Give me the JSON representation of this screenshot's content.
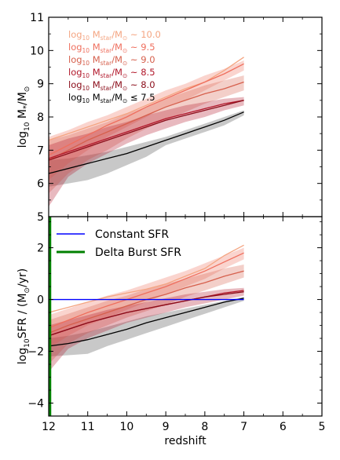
{
  "chart_data": [
    {
      "type": "line",
      "panel": "top",
      "ylabel_main": "log",
      "ylabel_sub": "10",
      "ylabel_tail": " M",
      "ylabel_star": "*",
      "ylabel_sep": "/M",
      "ylabel_sun": "⊙",
      "xlim": [
        12,
        5
      ],
      "ylim": [
        5,
        11
      ],
      "yticks": [
        5,
        6,
        7,
        8,
        9,
        10,
        11
      ],
      "grid": false,
      "legend_placement": "top-left",
      "x": [
        12,
        11.5,
        11,
        10.5,
        10,
        9.5,
        9,
        8.5,
        8,
        7.5,
        7
      ],
      "series": [
        {
          "name": "log10 Mstar/M⊙ ~ 10.0",
          "label_main": "log",
          "label_sub": "10",
          "label_m": " M",
          "label_ms": "star",
          "label_mid": "/M",
          "label_sun": "⊙",
          "label_rel": " ~ 10.0",
          "color": "#f4a582",
          "values": [
            7.3,
            7.5,
            7.7,
            7.9,
            8.1,
            8.35,
            8.6,
            8.85,
            9.05,
            9.4,
            9.8
          ],
          "band_lo": null,
          "band_hi": null
        },
        {
          "name": "log10 Mstar/M⊙ ~ 9.5",
          "label_main": "log",
          "label_sub": "10",
          "label_m": " M",
          "label_ms": "star",
          "label_mid": "/M",
          "label_sun": "⊙",
          "label_rel": " ~ 9.5",
          "color": "#ef6f5e",
          "values": [
            6.85,
            7.15,
            7.45,
            7.75,
            8.0,
            8.3,
            8.55,
            8.8,
            9.05,
            9.3,
            9.6
          ],
          "band_lo": [
            6.1,
            6.6,
            7.0,
            7.4,
            7.7,
            8.0,
            8.3,
            8.5,
            8.8,
            9.1,
            9.4
          ],
          "band_hi": [
            7.4,
            7.6,
            7.85,
            8.05,
            8.3,
            8.55,
            8.8,
            9.0,
            9.25,
            9.45,
            9.7
          ]
        },
        {
          "name": "log10 Mstar/M⊙ ~ 9.0",
          "label_main": "log",
          "label_sub": "10",
          "label_m": " M",
          "label_ms": "star",
          "label_mid": "/M",
          "label_sun": "⊙",
          "label_rel": " ~ 9.0",
          "color": "#d6604d",
          "values": [
            6.7,
            7.0,
            7.3,
            7.55,
            7.8,
            8.05,
            8.3,
            8.5,
            8.7,
            8.85,
            9.05
          ],
          "band_lo": [
            5.7,
            6.3,
            6.7,
            7.0,
            7.35,
            7.65,
            7.9,
            8.15,
            8.4,
            8.6,
            8.8
          ],
          "band_hi": [
            7.3,
            7.45,
            7.65,
            7.85,
            8.1,
            8.3,
            8.55,
            8.75,
            8.95,
            9.1,
            9.25
          ]
        },
        {
          "name": "log10 Mstar/M⊙ ~ 8.5",
          "label_main": "log",
          "label_sub": "10",
          "label_m": " M",
          "label_ms": "star",
          "label_mid": "/M",
          "label_sun": "⊙",
          "label_rel": " ~ 8.5",
          "color": "#b2182b",
          "values": [
            6.75,
            6.95,
            7.15,
            7.35,
            7.55,
            7.75,
            7.95,
            8.1,
            8.25,
            8.4,
            8.5
          ],
          "band_lo": [
            5.3,
            6.2,
            6.6,
            6.9,
            7.2,
            7.45,
            7.65,
            7.85,
            8.0,
            8.2,
            8.35
          ],
          "band_hi": [
            7.15,
            7.35,
            7.5,
            7.7,
            7.85,
            8.05,
            8.2,
            8.35,
            8.45,
            8.55,
            8.6
          ]
        },
        {
          "name": "log10 Mstar/M⊙ ~ 8.0",
          "label_main": "log",
          "label_sub": "10",
          "label_m": " M",
          "label_ms": "star",
          "label_mid": "/M",
          "label_sun": "⊙",
          "label_rel": " ~ 8.0",
          "color": "#8b0d1a",
          "values": [
            6.7,
            6.9,
            7.1,
            7.3,
            7.5,
            7.7,
            7.9,
            8.05,
            8.2,
            8.35,
            8.5
          ],
          "band_lo": null,
          "band_hi": null
        },
        {
          "name": "log10 Mstar/M⊙ ≤ 7.5",
          "label_main": "log",
          "label_sub": "10",
          "label_m": " M",
          "label_ms": "star",
          "label_mid": "/M",
          "label_sun": "⊙",
          "label_rel": " ≤ 7.5",
          "color": "#000000",
          "values": [
            6.3,
            6.45,
            6.6,
            6.75,
            6.9,
            7.1,
            7.3,
            7.5,
            7.7,
            7.9,
            8.15
          ],
          "band_lo": [
            5.9,
            6.0,
            6.1,
            6.3,
            6.55,
            6.8,
            7.15,
            7.35,
            7.55,
            7.75,
            8.05
          ],
          "band_hi": [
            6.7,
            6.75,
            6.85,
            6.95,
            7.1,
            7.25,
            7.4,
            7.6,
            7.8,
            8.0,
            8.2
          ]
        }
      ]
    },
    {
      "type": "line",
      "panel": "bottom",
      "ylabel_main": "log",
      "ylabel_sub": "10",
      "ylabel_tail": "SFR / (M",
      "ylabel_sun": "⊙",
      "ylabel_end": "/yr)",
      "xlabel": "redshift",
      "xlim": [
        12,
        5
      ],
      "ylim": [
        -4.5,
        3.2
      ],
      "xticks": [
        12,
        11,
        10,
        9,
        8,
        7,
        6,
        5
      ],
      "yticks": [
        -4,
        -2,
        0,
        2
      ],
      "grid": false,
      "legend_placement": "top-left",
      "legend": [
        {
          "name": "Constant SFR",
          "color": "#0000ff"
        },
        {
          "name": "Delta Burst SFR",
          "color": "#008000"
        }
      ],
      "constant_sfr": {
        "x": [
          12,
          7
        ],
        "y": [
          0,
          0
        ],
        "color": "#0000ff"
      },
      "delta_burst": {
        "x": 12,
        "color": "#008000"
      },
      "x": [
        12,
        11.5,
        11,
        10.5,
        10,
        9.5,
        9,
        8.5,
        8,
        7.5,
        7
      ],
      "series": [
        {
          "color": "#f4a582",
          "values": [
            -0.5,
            -0.3,
            -0.1,
            0.1,
            0.25,
            0.4,
            0.6,
            0.9,
            1.2,
            1.7,
            2.1
          ],
          "band_lo": null,
          "band_hi": null
        },
        {
          "color": "#ef6f5e",
          "values": [
            -1.1,
            -0.8,
            -0.5,
            -0.25,
            0.0,
            0.25,
            0.5,
            0.8,
            1.1,
            1.45,
            1.8
          ],
          "band_lo": [
            -1.9,
            -1.4,
            -1.0,
            -0.7,
            -0.4,
            -0.1,
            0.2,
            0.5,
            0.8,
            1.2,
            1.55
          ],
          "band_hi": [
            -0.6,
            -0.35,
            -0.1,
            0.15,
            0.35,
            0.6,
            0.85,
            1.1,
            1.4,
            1.7,
            2.0
          ]
        },
        {
          "color": "#d6604d",
          "values": [
            -1.3,
            -1.0,
            -0.75,
            -0.5,
            -0.25,
            0.0,
            0.2,
            0.45,
            0.65,
            0.9,
            1.1
          ],
          "band_lo": [
            -2.5,
            -1.7,
            -1.3,
            -1.0,
            -0.7,
            -0.45,
            -0.2,
            0.1,
            0.35,
            0.6,
            0.85
          ],
          "band_hi": [
            -0.8,
            -0.55,
            -0.3,
            -0.05,
            0.15,
            0.4,
            0.6,
            0.8,
            1.0,
            1.2,
            1.35
          ]
        },
        {
          "color": "#b2182b",
          "values": [
            -1.4,
            -1.15,
            -0.9,
            -0.7,
            -0.5,
            -0.35,
            -0.2,
            -0.05,
            0.1,
            0.25,
            0.35
          ],
          "band_lo": [
            -2.8,
            -1.9,
            -1.5,
            -1.2,
            -0.9,
            -0.7,
            -0.5,
            -0.3,
            -0.15,
            0.0,
            0.15
          ],
          "band_hi": [
            -1.0,
            -0.8,
            -0.6,
            -0.4,
            -0.25,
            -0.1,
            0.05,
            0.2,
            0.3,
            0.4,
            0.45
          ]
        },
        {
          "color": "#8b0d1a",
          "values": [
            -1.4,
            -1.15,
            -0.9,
            -0.7,
            -0.5,
            -0.35,
            -0.2,
            -0.05,
            0.1,
            0.2,
            0.3
          ],
          "band_lo": null,
          "band_hi": null
        },
        {
          "color": "#000000",
          "values": [
            -1.8,
            -1.7,
            -1.55,
            -1.35,
            -1.15,
            -0.9,
            -0.7,
            -0.5,
            -0.3,
            -0.1,
            0.05
          ],
          "band_lo": [
            -2.2,
            -2.15,
            -2.1,
            -1.8,
            -1.55,
            -1.3,
            -1.05,
            -0.8,
            -0.55,
            -0.3,
            -0.05
          ],
          "band_hi": [
            -1.5,
            -1.4,
            -1.25,
            -1.05,
            -0.85,
            -0.65,
            -0.5,
            -0.35,
            -0.2,
            -0.05,
            0.1
          ]
        }
      ]
    }
  ]
}
